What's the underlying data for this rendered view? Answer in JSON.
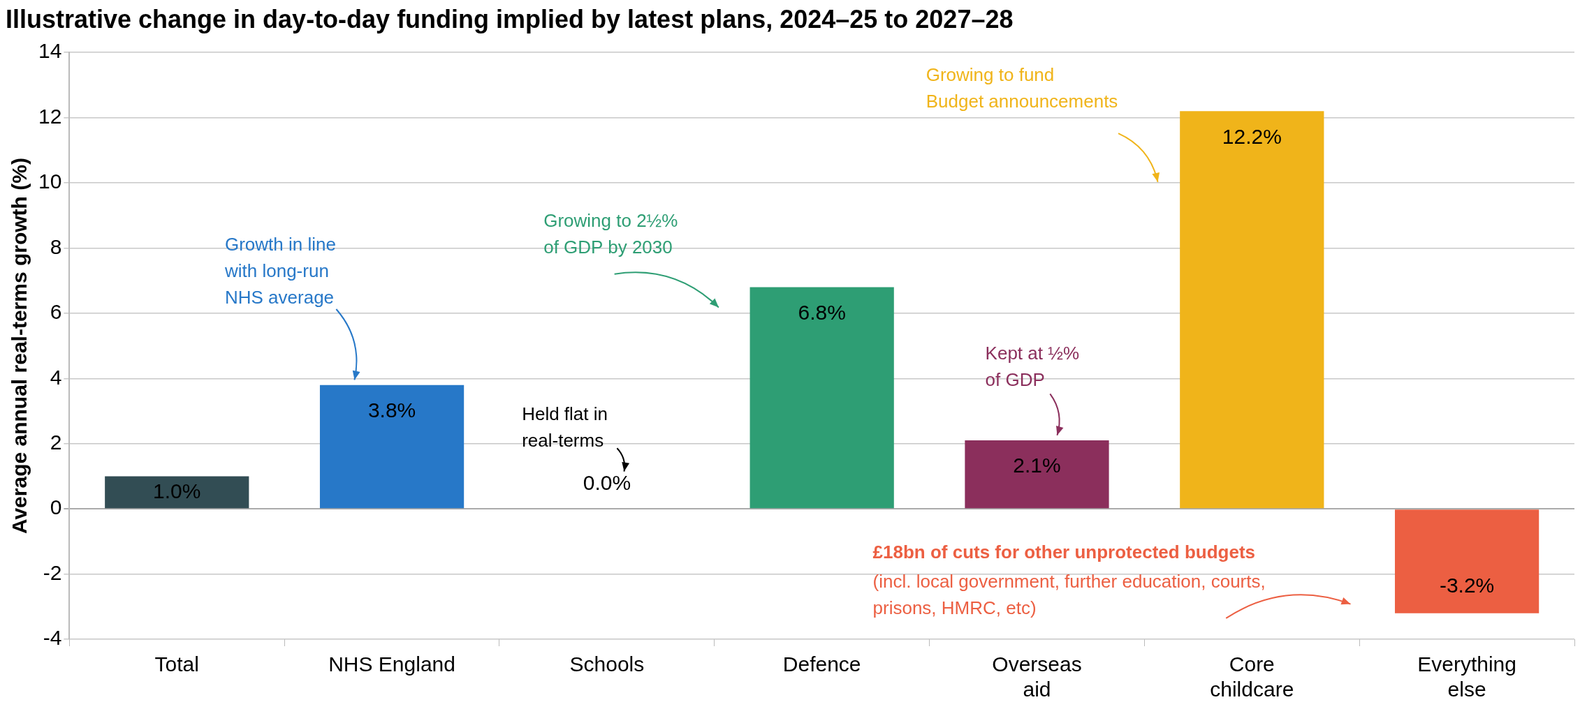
{
  "chart_data": {
    "type": "bar",
    "title": "Illustrative change in day-to-day funding implied by latest plans, 2024–25 to 2027–28",
    "ylabel": "Average annual real-terms growth (%)",
    "categories": [
      "Total",
      "NHS England",
      "Schools",
      "Defence",
      "Overseas aid",
      "Core childcare",
      "Everything else"
    ],
    "values": [
      1.0,
      3.8,
      0.0,
      6.8,
      2.1,
      12.2,
      -3.2
    ],
    "value_labels": [
      "1.0%",
      "3.8%",
      "0.0%",
      "6.8%",
      "2.1%",
      "12.2%",
      "-3.2%"
    ],
    "colors": [
      "#324d54",
      "#2778c8",
      "#000000",
      "#2e9e74",
      "#8b2f5c",
      "#f0b41a",
      "#ec5f42"
    ],
    "ylim": [
      -4,
      14
    ],
    "yticks": [
      -4,
      -2,
      0,
      2,
      4,
      6,
      8,
      10,
      12,
      14
    ],
    "grid": "y",
    "legend": false,
    "annotations": [
      "Growth in line\nwith long-run\nNHS average",
      "Held flat in\nreal-terms",
      "Growing to 2½%\nof GDP by 2030",
      "Kept at ½%\nof GDP",
      "Growing to fund\nBudget announcements",
      "£18bn of cuts for other unprotected budgets",
      "(incl. local government, further education, courts,\nprisons, HMRC, etc)"
    ]
  }
}
